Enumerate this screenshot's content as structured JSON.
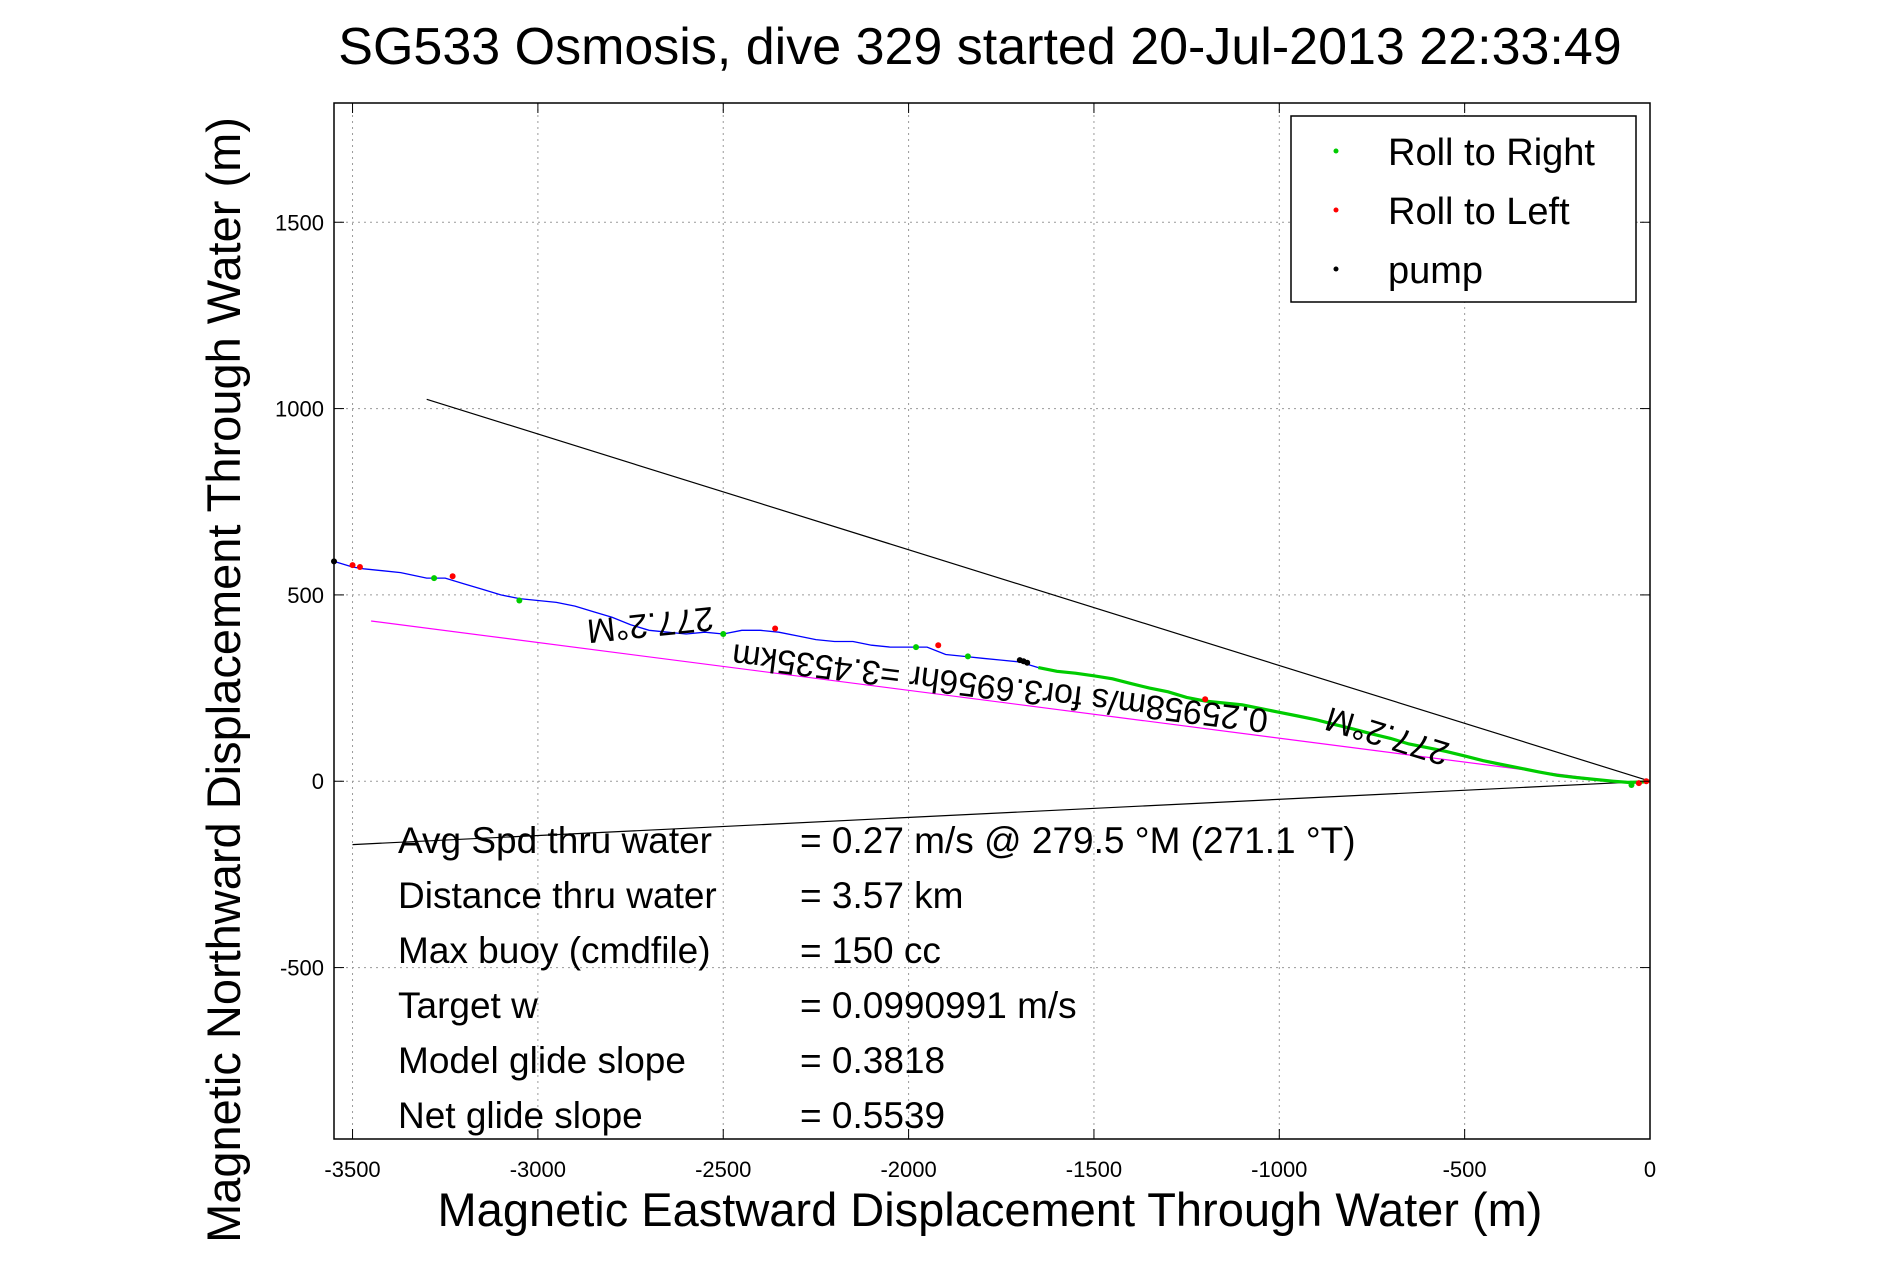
{
  "chart_data": {
    "type": "line",
    "title": "SG533 Osmosis, dive 329 started 20-Jul-2013 22:33:49",
    "xlabel": "Magnetic Eastward Displacement Through Water (m)",
    "ylabel": "Magnetic Northward Displacement Through Water (m)",
    "xlim": [
      -3550,
      0
    ],
    "ylim": [
      -960,
      1820
    ],
    "xticks": [
      -3500,
      -3000,
      -2500,
      -2000,
      -1500,
      -1000,
      -500,
      0
    ],
    "xtick_labels": [
      "-3500",
      "-3000",
      "-2500",
      "-2000",
      "-1500",
      "-1000",
      "-500",
      "0"
    ],
    "yticks": [
      -500,
      0,
      500,
      1000,
      1500
    ],
    "ytick_labels": [
      "-500",
      "0",
      "500",
      "1000",
      "1500"
    ],
    "grid": true,
    "legend_position": "top-right",
    "legend": [
      {
        "label": "Roll to Right",
        "color": "#00cc00"
      },
      {
        "label": "Roll to Left",
        "color": "#ff0000"
      },
      {
        "label": "pump",
        "color": "#000000"
      }
    ],
    "series": [
      {
        "role": "track",
        "color": "#0000ff",
        "x": [
          -3550,
          -3500,
          -3470,
          -3420,
          -3370,
          -3300,
          -3250,
          -3200,
          -3150,
          -3100,
          -3050,
          -3000,
          -2950,
          -2900,
          -2850,
          -2800,
          -2750,
          -2700,
          -2650,
          -2600,
          -2550,
          -2500,
          -2450,
          -2400,
          -2350,
          -2300,
          -2250,
          -2200,
          -2150,
          -2100,
          -2050,
          -2000,
          -1950,
          -1900,
          -1850,
          -1800,
          -1750,
          -1700,
          -1650
        ],
        "y": [
          590,
          575,
          570,
          565,
          560,
          545,
          545,
          530,
          515,
          500,
          490,
          485,
          480,
          470,
          455,
          440,
          420,
          405,
          400,
          395,
          400,
          395,
          405,
          405,
          400,
          390,
          380,
          375,
          375,
          365,
          360,
          360,
          360,
          340,
          335,
          330,
          325,
          320,
          305
        ]
      },
      {
        "role": "track",
        "color": "#00cc00",
        "x": [
          -1650,
          -1600,
          -1550,
          -1500,
          -1450,
          -1400,
          -1350,
          -1300,
          -1250,
          -1200,
          -1150,
          -1100,
          -1050,
          -1000,
          -950,
          -900,
          -850,
          -800,
          -750,
          -700,
          -650,
          -600,
          -550,
          -500,
          -450,
          -400,
          -350,
          -300,
          -250,
          -200,
          -150,
          -100,
          -60,
          -20,
          0
        ],
        "y": [
          305,
          295,
          290,
          283,
          275,
          262,
          250,
          240,
          225,
          215,
          210,
          205,
          195,
          185,
          175,
          165,
          152,
          140,
          127,
          115,
          100,
          90,
          80,
          68,
          55,
          45,
          35,
          25,
          16,
          10,
          5,
          0,
          -3,
          -2,
          0
        ]
      },
      {
        "role": "reference",
        "color": "#ff00ff",
        "x": [
          -3450,
          -100
        ],
        "y": [
          430,
          0
        ]
      },
      {
        "role": "reference",
        "color": "#000000",
        "x": [
          -3300,
          0
        ],
        "y": [
          1025,
          0
        ]
      },
      {
        "role": "reference",
        "color": "#000000",
        "x": [
          -3500,
          0
        ],
        "y": [
          -170,
          0
        ]
      }
    ],
    "markers": {
      "roll_right": {
        "color": "#00cc00",
        "x": [
          -3280,
          -3050,
          -2500,
          -1980,
          -1840,
          -50
        ],
        "y": [
          545,
          485,
          395,
          360,
          335,
          -10
        ]
      },
      "roll_left": {
        "color": "#ff0000",
        "x": [
          -3500,
          -3480,
          -3230,
          -2360,
          -1920,
          -1200,
          -30,
          -10
        ],
        "y": [
          580,
          575,
          550,
          410,
          365,
          220,
          -5,
          0
        ]
      },
      "pump": {
        "color": "#000000",
        "x": [
          -3550,
          -1700,
          -1690,
          -1680
        ],
        "y": [
          590,
          325,
          322,
          318
        ]
      }
    },
    "annotations": [
      {
        "text": "277.2°M",
        "x": -2700,
        "y": 450,
        "rotate": 174
      },
      {
        "text": "277.2°M",
        "x": -700,
        "y": 150,
        "rotate": 197
      },
      {
        "text": "0.25958m/s for3.6956hr =3.4535km",
        "x": -1750,
        "y": 280,
        "rotate": 187
      }
    ],
    "stats": [
      {
        "label": "Avg Spd thru water",
        "value": "=  0.27 m/s @ 279.5 °M (271.1 °T)"
      },
      {
        "label": "Distance thru water",
        "value": "=  3.57 km"
      },
      {
        "label": "Max buoy (cmdfile)",
        "value": "= 150 cc"
      },
      {
        "label": "Target w",
        "value": "= 0.0990991 m/s"
      },
      {
        "label": "Model glide slope",
        "value": "= 0.3818"
      },
      {
        "label": "Net glide slope",
        "value": "= 0.5539"
      }
    ]
  }
}
